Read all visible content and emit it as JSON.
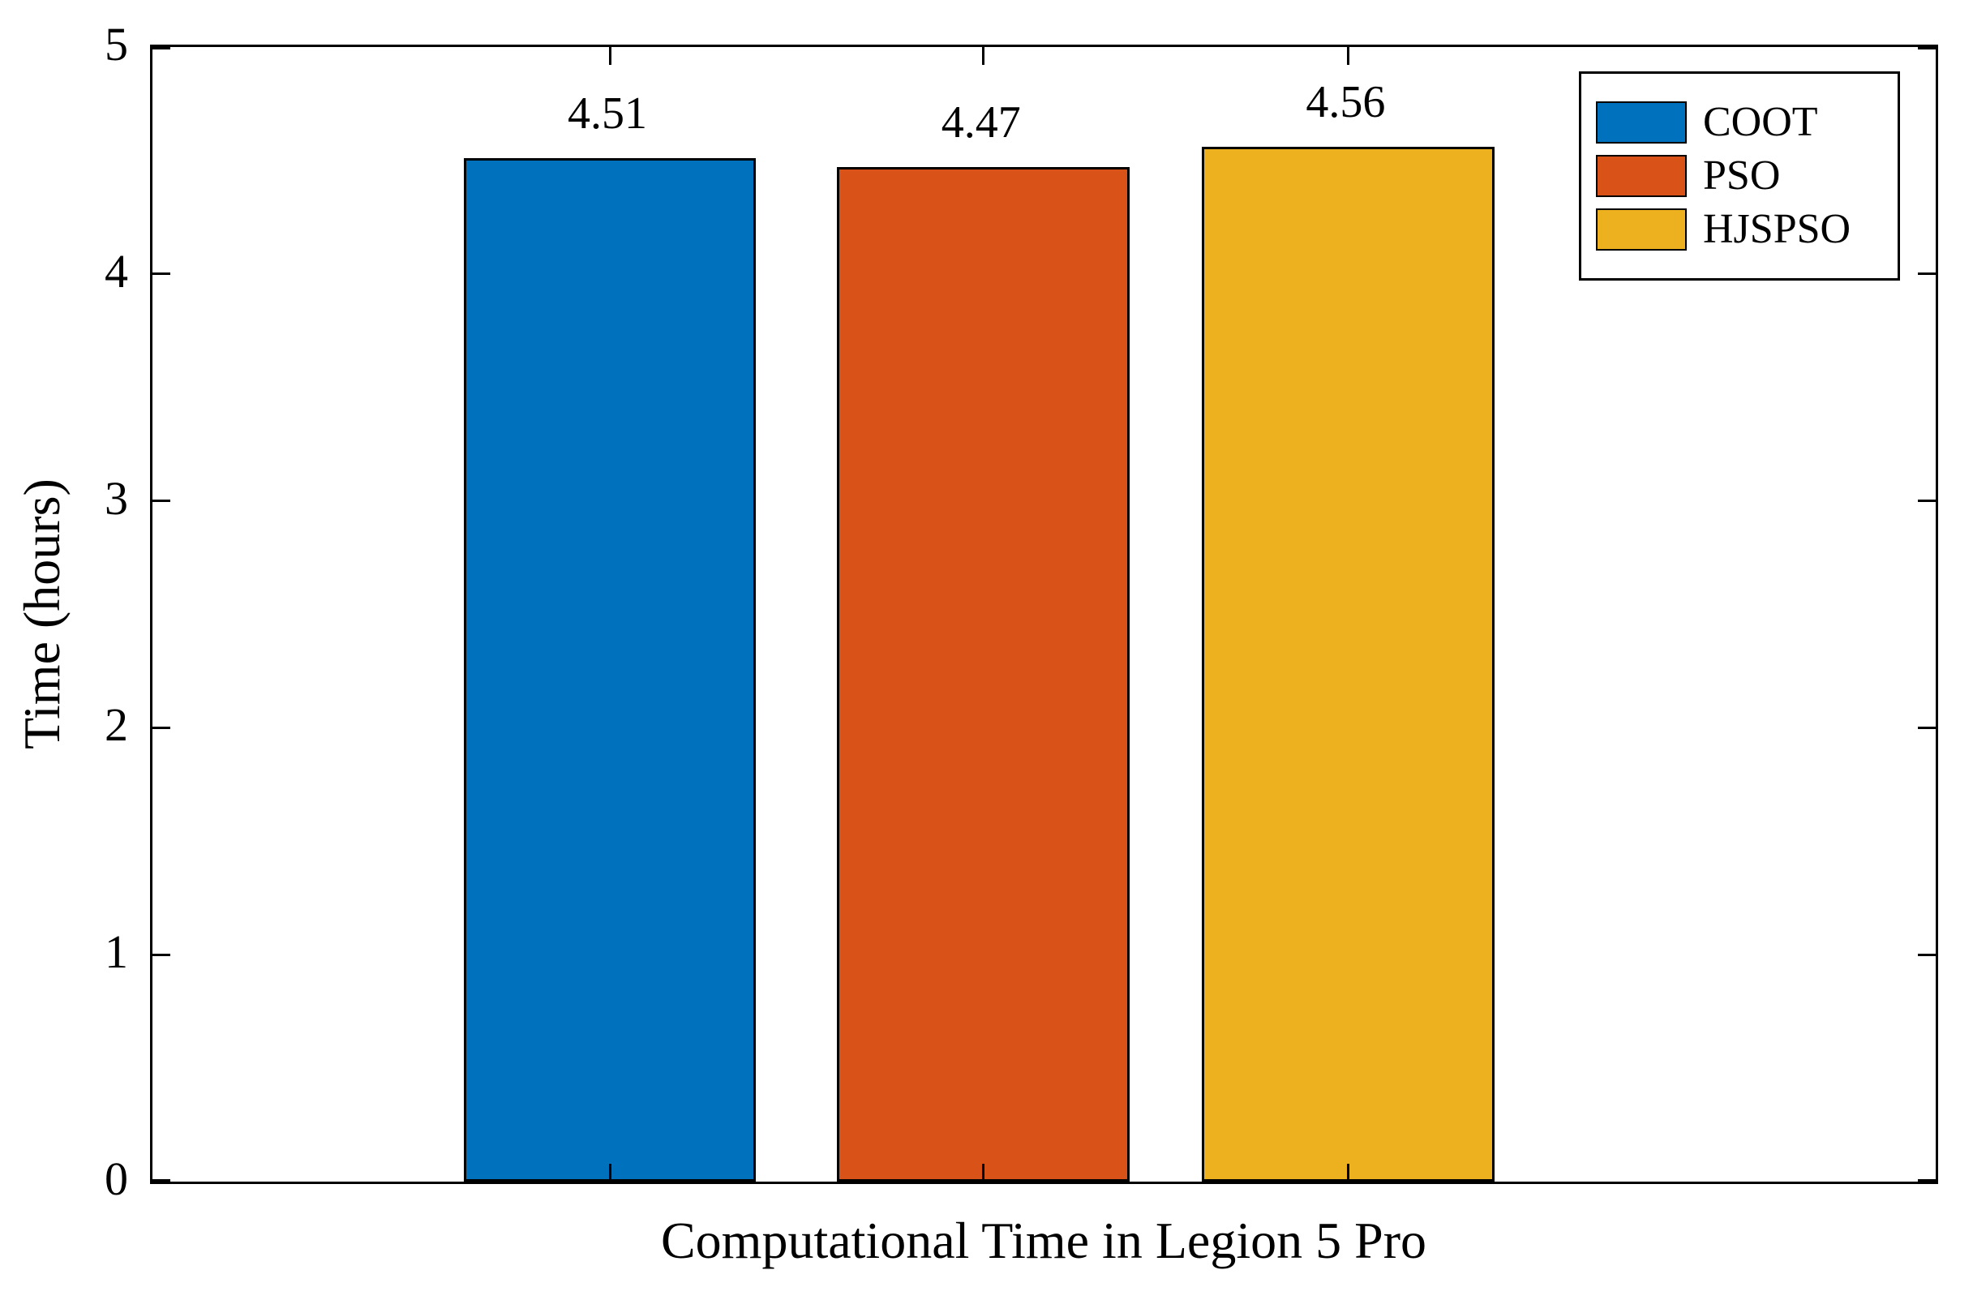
{
  "chart_data": {
    "type": "bar",
    "categories": [
      "COOT",
      "PSO",
      "HJSPSO"
    ],
    "values": [
      4.51,
      4.47,
      4.56
    ],
    "value_labels": [
      "4.51",
      "4.47",
      "4.56"
    ],
    "colors": [
      "#0072BD",
      "#D95319",
      "#EDB120"
    ],
    "bar_edge_color": "#000000",
    "title": "",
    "xlabel": "Computational Time in Legion 5 Pro",
    "ylabel": "Time (hours)",
    "ylim": [
      0,
      5
    ],
    "yticks": [
      0,
      1,
      2,
      3,
      4,
      5
    ],
    "grid": false,
    "background_color": "#ffffff",
    "axis_color": "#000000",
    "legend": {
      "position": "top-right",
      "entries": [
        {
          "label": "COOT",
          "color": "#0072BD"
        },
        {
          "label": "PSO",
          "color": "#D95319"
        },
        {
          "label": "HJSPSO",
          "color": "#EDB120"
        }
      ]
    }
  }
}
